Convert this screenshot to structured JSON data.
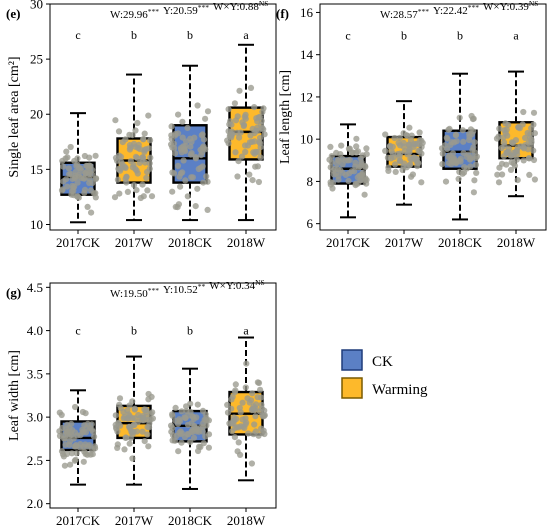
{
  "legend": {
    "items": [
      {
        "label": "CK",
        "color": "#5b80c5"
      },
      {
        "label": "Warming",
        "color": "#fdb92b"
      }
    ]
  },
  "point_color": "#9a9a8e",
  "chart_data": [
    {
      "type": "box",
      "panel": "(e)",
      "ylabel": "Single leaf area [cm²]",
      "categories": [
        "2017CK",
        "2017W",
        "2018CK",
        "2018W"
      ],
      "ylim": [
        9.5,
        30
      ],
      "yticks": [
        10,
        15,
        20,
        25,
        30
      ],
      "stats": [
        {
          "label": "W:29.96",
          "sig": "***"
        },
        {
          "label": "Y:20.59",
          "sig": "***"
        },
        {
          "label": "W×Y:0.88",
          "sig": "NS"
        }
      ],
      "letters": [
        "c",
        "b",
        "b",
        "a"
      ],
      "letter_y": 27.2,
      "boxes": [
        {
          "category": "2017CK",
          "group": "CK",
          "whisker_low": 10.2,
          "q1": 12.7,
          "median": 14.3,
          "q3": 15.6,
          "whisker_high": 20.1
        },
        {
          "category": "2017W",
          "group": "Warming",
          "whisker_low": 10.4,
          "q1": 13.8,
          "median": 15.8,
          "q3": 17.8,
          "whisker_high": 23.6
        },
        {
          "category": "2018CK",
          "group": "CK",
          "whisker_low": 10.4,
          "q1": 13.8,
          "median": 16.0,
          "q3": 19.0,
          "whisker_high": 24.4
        },
        {
          "category": "2018W",
          "group": "Warming",
          "whisker_low": 10.4,
          "q1": 15.9,
          "median": 18.4,
          "q3": 20.6,
          "whisker_high": 26.3
        }
      ]
    },
    {
      "type": "box",
      "panel": "(f)",
      "ylabel": "Leaf length [cm]",
      "categories": [
        "2017CK",
        "2017W",
        "2018CK",
        "2018W"
      ],
      "ylim": [
        5.7,
        16.4
      ],
      "yticks": [
        6,
        8,
        10,
        12,
        14,
        16
      ],
      "stats": [
        {
          "label": "W:28.57",
          "sig": "***"
        },
        {
          "label": "Y:22.42",
          "sig": "***"
        },
        {
          "label": "W×Y:0.39",
          "sig": "NS"
        }
      ],
      "letters": [
        "c",
        "b",
        "b",
        "a"
      ],
      "letter_y": 14.9,
      "boxes": [
        {
          "category": "2017CK",
          "group": "CK",
          "whisker_low": 6.3,
          "q1": 7.9,
          "median": 8.6,
          "q3": 9.2,
          "whisker_high": 10.7
        },
        {
          "category": "2017W",
          "group": "Warming",
          "whisker_low": 6.9,
          "q1": 8.7,
          "median": 9.3,
          "q3": 10.1,
          "whisker_high": 11.8
        },
        {
          "category": "2018CK",
          "group": "CK",
          "whisker_low": 6.2,
          "q1": 8.6,
          "median": 9.4,
          "q3": 10.4,
          "whisker_high": 13.1
        },
        {
          "category": "2018W",
          "group": "Warming",
          "whisker_low": 7.3,
          "q1": 9.1,
          "median": 9.7,
          "q3": 10.8,
          "whisker_high": 13.2
        }
      ]
    },
    {
      "type": "box",
      "panel": "(g)",
      "ylabel": "Leaf width [cm]",
      "categories": [
        "2017CK",
        "2017W",
        "2018CK",
        "2018W"
      ],
      "ylim": [
        1.95,
        4.55
      ],
      "yticks": [
        2.0,
        2.5,
        3.0,
        3.5,
        4.0,
        4.5
      ],
      "tick_decimals": 1,
      "stats": [
        {
          "label": "W:19.50",
          "sig": "***"
        },
        {
          "label": "Y:10.52",
          "sig": "**"
        },
        {
          "label": "W×Y:0.34",
          "sig": "NS"
        }
      ],
      "letters": [
        "c",
        "b",
        "b",
        "a"
      ],
      "letter_y": 4.0,
      "boxes": [
        {
          "category": "2017CK",
          "group": "CK",
          "whisker_low": 2.22,
          "q1": 2.62,
          "median": 2.76,
          "q3": 2.95,
          "whisker_high": 3.31
        },
        {
          "category": "2017W",
          "group": "Warming",
          "whisker_low": 2.22,
          "q1": 2.76,
          "median": 2.93,
          "q3": 3.13,
          "whisker_high": 3.7
        },
        {
          "category": "2018CK",
          "group": "CK",
          "whisker_low": 2.17,
          "q1": 2.72,
          "median": 2.9,
          "q3": 3.07,
          "whisker_high": 3.56
        },
        {
          "category": "2018W",
          "group": "Warming",
          "whisker_low": 2.27,
          "q1": 2.8,
          "median": 3.04,
          "q3": 3.29,
          "whisker_high": 3.92
        }
      ]
    }
  ]
}
